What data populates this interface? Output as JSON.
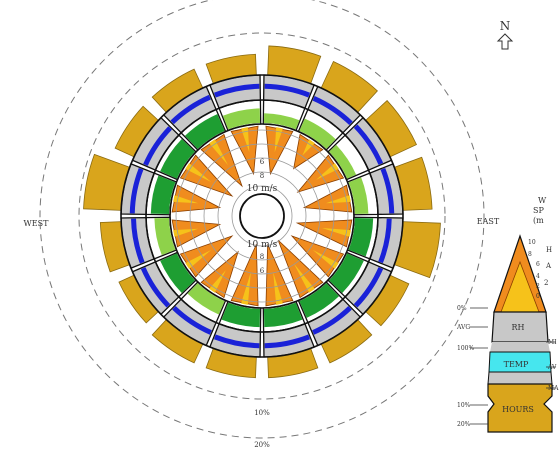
{
  "chart_data": {
    "type": "wind-rose",
    "sectors": 16,
    "compass": {
      "north": "N",
      "west": "WEST",
      "east": "EAST"
    },
    "outer_rings": [
      "10%",
      "20%"
    ],
    "speed_rings": [
      "2",
      "4",
      "6",
      "8",
      "10 m/s"
    ],
    "legend": {
      "title_lines": [
        "W",
        "SP",
        "(m"
      ],
      "speed_ticks": [
        "10",
        "8",
        "6",
        "4",
        "2",
        "0"
      ],
      "speed_marks": [
        "H",
        "A",
        "2"
      ],
      "left_labels": [
        "0%",
        "AVG",
        "100%",
        "10%",
        "20%"
      ],
      "right_labels": [
        "MI",
        "AV",
        "MA"
      ],
      "band_labels": {
        "rh": "RH",
        "temp": "TEMP",
        "hours": "HOURS"
      }
    },
    "colors": {
      "speed_orange": "#f08c1e",
      "speed_yellow": "#f6c21a",
      "rh_green": "#1e9e32",
      "rh_light_green": "#8ed24a",
      "temp_gray": "#c8c8c8",
      "temp_blue": "#1a22d8",
      "temp_cyan": "#46e6ee",
      "hours_gold": "#d9a51c"
    },
    "wind_speed_max_ms": [
      7,
      5,
      7,
      7,
      8,
      8,
      9,
      9,
      9,
      7,
      8,
      7,
      7,
      8,
      8,
      7
    ],
    "rh_fill_fraction": [
      0.45,
      0.6,
      0.45,
      0.6,
      0.8,
      0.8,
      0.8,
      0.8,
      0.8,
      0.65,
      0.8,
      0.65,
      0.8,
      0.8,
      0.8,
      0.65
    ],
    "temperature_marker_fraction": [
      0.55,
      0.5,
      0.55,
      0.55,
      0.45,
      0.55,
      0.45,
      0.55,
      0.55,
      0.45,
      0.55,
      0.5,
      0.55,
      0.45,
      0.55,
      0.55
    ],
    "hours_percent": [
      12,
      12,
      12,
      12,
      16,
      8,
      8,
      8,
      8,
      8,
      6,
      8,
      16,
      8,
      8,
      8
    ]
  }
}
